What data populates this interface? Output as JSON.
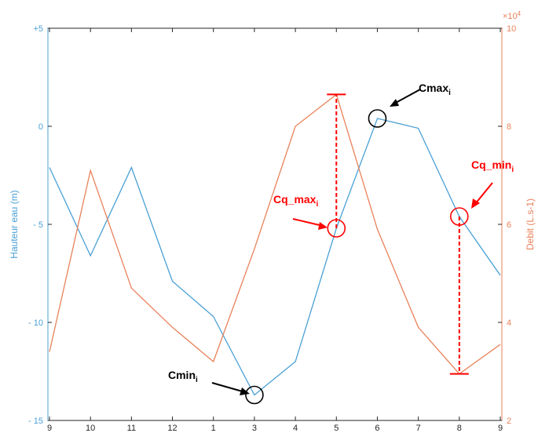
{
  "chart_data": {
    "type": "line",
    "categories": [
      "9",
      "10",
      "11",
      "12",
      "1",
      "3",
      "4",
      "5",
      "6",
      "7",
      "8",
      "9"
    ],
    "left_axis": {
      "label": "Hauteur eau (m)",
      "ylim": [
        -15,
        5
      ],
      "ticks": [
        5,
        0,
        -5,
        -10,
        -15
      ],
      "tick_labels": [
        "+5",
        "0",
        "- 5",
        "- 10",
        "- 15"
      ],
      "color": "#4aa0d5"
    },
    "right_axis": {
      "label": "Debit (L.s-1)",
      "ylim": [
        2,
        10
      ],
      "ticks": [
        2,
        4,
        6,
        8,
        10
      ],
      "tick_labels": [
        "2",
        "4",
        "6",
        "8",
        "10"
      ],
      "exponent_base": "×10",
      "exponent_power": "4",
      "color": "#e8825a"
    },
    "grid": false,
    "series": [
      {
        "axis": "left",
        "color": "#4aa0d5",
        "values": [
          -2.1,
          -6.6,
          -2.1,
          -7.9,
          -9.7,
          -13.7,
          -12.0,
          -5.2,
          0.4,
          -0.1,
          -4.6,
          -7.6
        ]
      },
      {
        "axis": "right",
        "color": "#e8825a",
        "values": [
          3.4,
          7.1,
          4.7,
          3.9,
          3.2,
          5.5,
          8.0,
          8.65,
          5.9,
          3.9,
          2.95,
          3.55
        ]
      }
    ],
    "annotations": [
      {
        "kind": "circle",
        "axis": "left",
        "x_index": 5,
        "y": -13.7,
        "color": "#000000"
      },
      {
        "kind": "circle",
        "axis": "left",
        "x_index": 8,
        "y": 0.4,
        "color": "#000000"
      },
      {
        "kind": "circle",
        "axis": "left",
        "x_index": 7,
        "y": -5.2,
        "color": "#ff0000"
      },
      {
        "kind": "circle",
        "axis": "left",
        "x_index": 10,
        "y": -4.6,
        "color": "#ff0000"
      },
      {
        "kind": "vrange",
        "x_index": 7,
        "axis": "left",
        "y_from": -5.2,
        "to_axis": "right",
        "y_to": 8.65,
        "color": "#ff0000"
      },
      {
        "kind": "vrange",
        "x_index": 10,
        "axis": "left",
        "y_from": -4.6,
        "to_axis": "right",
        "y_to": 2.95,
        "color": "#ff0000"
      }
    ],
    "labels": [
      {
        "main": "Cmin",
        "sub": "i",
        "color": "#000000"
      },
      {
        "main": "Cmax",
        "sub": "i",
        "color": "#000000"
      },
      {
        "main": "Cq_max",
        "sub": "i",
        "color": "#ff0000"
      },
      {
        "main": "Cq_min",
        "sub": "i",
        "color": "#ff0000"
      }
    ]
  }
}
